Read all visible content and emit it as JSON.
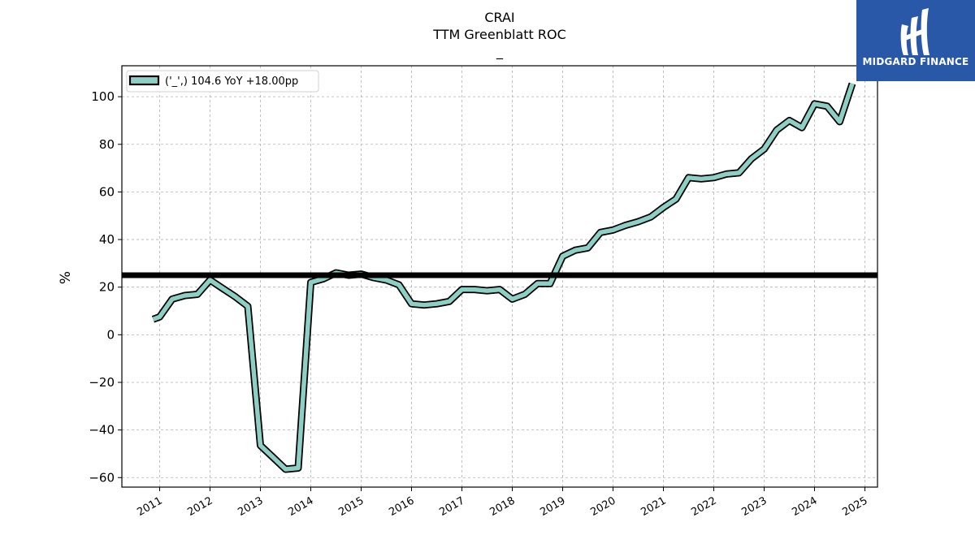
{
  "chart_data": {
    "type": "line",
    "title": "CRAI",
    "subtitle": "TTM Greenblatt ROC",
    "subtitle2": "_",
    "xlabel": "",
    "ylabel": "%",
    "xlim": [
      2010.25,
      2025.25
    ],
    "ylim": [
      -64,
      113
    ],
    "yticks": [
      -60,
      -40,
      -20,
      0,
      20,
      40,
      60,
      80,
      100
    ],
    "ytick_labels": [
      "−60",
      "−40",
      "−20",
      "0",
      "20",
      "40",
      "60",
      "80",
      "100"
    ],
    "xticks": [
      2011,
      2012,
      2013,
      2014,
      2015,
      2016,
      2017,
      2018,
      2019,
      2020,
      2021,
      2022,
      2023,
      2024,
      2025
    ],
    "xtick_labels": [
      "2011",
      "2012",
      "2013",
      "2014",
      "2015",
      "2016",
      "2017",
      "2018",
      "2019",
      "2020",
      "2021",
      "2022",
      "2023",
      "2024",
      "2025"
    ],
    "grid": true,
    "legend_position": "top-left",
    "series": [
      {
        "name": "('_',) 104.6 YoY +18.00pp",
        "color": "#8ecfc5",
        "edge_color": "#000000",
        "x": [
          2010.87,
          2011.0,
          2011.25,
          2011.5,
          2011.75,
          2012.0,
          2012.25,
          2012.5,
          2012.75,
          2013.0,
          2013.25,
          2013.5,
          2013.75,
          2014.0,
          2014.25,
          2014.5,
          2014.75,
          2015.0,
          2015.25,
          2015.5,
          2015.75,
          2016.0,
          2016.25,
          2016.5,
          2016.75,
          2017.0,
          2017.25,
          2017.5,
          2017.75,
          2018.0,
          2018.25,
          2018.5,
          2018.75,
          2019.0,
          2019.25,
          2019.5,
          2019.75,
          2020.0,
          2020.25,
          2020.5,
          2020.75,
          2021.0,
          2021.25,
          2021.5,
          2021.75,
          2022.0,
          2022.25,
          2022.5,
          2022.75,
          2023.0,
          2023.25,
          2023.5,
          2023.75,
          2024.0,
          2024.25,
          2024.5,
          2024.75
        ],
        "values": [
          6.5,
          7.5,
          15.0,
          16.5,
          17.0,
          23.0,
          19.5,
          16.0,
          12.0,
          -46.5,
          -51.5,
          -56.5,
          -56.0,
          22.0,
          23.5,
          26.0,
          25.0,
          25.5,
          24.0,
          23.0,
          21.0,
          13.0,
          12.5,
          13.0,
          14.0,
          19.0,
          19.0,
          18.5,
          19.0,
          15.0,
          17.0,
          21.5,
          21.5,
          33.0,
          35.5,
          36.5,
          43.0,
          44.0,
          46.0,
          47.5,
          49.5,
          53.5,
          57.0,
          66.0,
          65.5,
          66.0,
          67.5,
          68.0,
          74.0,
          78.0,
          86.0,
          90.0,
          87.0,
          97.0,
          96.0,
          89.5,
          105.5
        ]
      },
      {
        "name": "",
        "type": "hline",
        "y": 25.0,
        "color": "#000000"
      }
    ]
  },
  "logo": {
    "text": "MIDGARD FINANCE",
    "background": "#2a58a8",
    "color": "#ffffff"
  }
}
